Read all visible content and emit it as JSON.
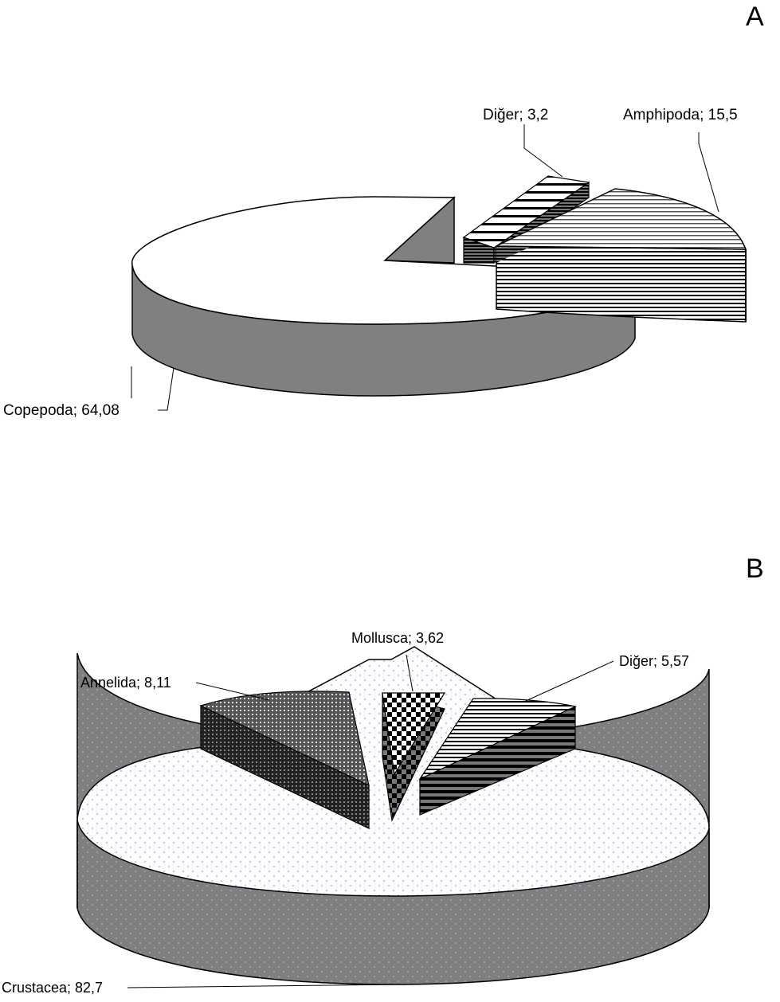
{
  "chart_data": [
    {
      "type": "pie",
      "panel": "A",
      "style": "3d-exploded",
      "slices": [
        {
          "name": "Copepoda",
          "value": 64.08,
          "label": "Copepoda; 64,08"
        },
        {
          "name": "Amphipoda",
          "value": 15.5,
          "label": "Amphipoda; 15,5"
        },
        {
          "name": "Diğer",
          "value": 3.2,
          "label": "Diğer; 3,2"
        }
      ]
    },
    {
      "type": "pie",
      "panel": "B",
      "style": "3d-exploded",
      "slices": [
        {
          "name": "Crustacea",
          "value": 82.7,
          "label": "Crustacea; 82,7"
        },
        {
          "name": "Annelida",
          "value": 8.11,
          "label": "Annelida; 8,11"
        },
        {
          "name": "Mollusca",
          "value": 3.62,
          "label": "Mollusca; 3,62"
        },
        {
          "name": "Diğer",
          "value": 5.57,
          "label": "Diğer; 5,57"
        }
      ]
    }
  ],
  "colors": {
    "copepoda_top": "#ffffff",
    "copepoda_side": "#808080",
    "crustacea_top": "#fdfdfd",
    "crustacea_side": "#7f7f7f",
    "dots": "#9a9ae6"
  }
}
